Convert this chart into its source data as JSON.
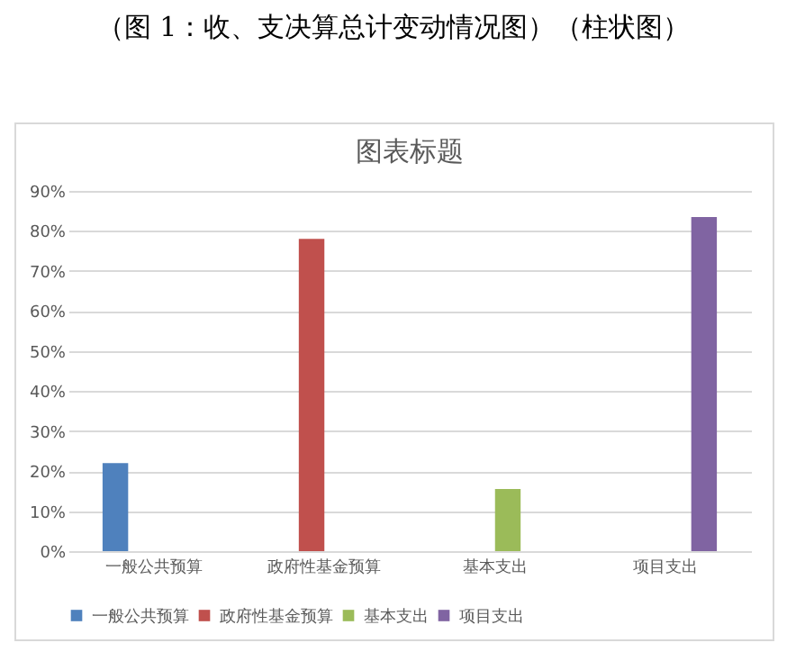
{
  "chart_data": {
    "type": "bar",
    "title": "（图 1：收、支决算总计变动情况图）（柱状图）",
    "subtitle": "图表标题",
    "categories": [
      "一般公共预算",
      "政府性基金预算",
      "基本支出",
      "项目支出"
    ],
    "series": [
      {
        "name": "一般公共预算",
        "color": "#4f81bd",
        "values": [
          22,
          null,
          null,
          null
        ]
      },
      {
        "name": "政府性基金预算",
        "color": "#c0504d",
        "values": [
          null,
          78,
          null,
          null
        ]
      },
      {
        "name": "基本支出",
        "color": "#9bbb59",
        "values": [
          null,
          null,
          15.5,
          null
        ]
      },
      {
        "name": "项目支出",
        "color": "#8064a2",
        "values": [
          null,
          null,
          null,
          83.5
        ]
      }
    ],
    "ylim": [
      0,
      90
    ],
    "yticks": [
      {
        "value": 0,
        "label": "0%"
      },
      {
        "value": 10,
        "label": "10%"
      },
      {
        "value": 20,
        "label": "20%"
      },
      {
        "value": 30,
        "label": "30%"
      },
      {
        "value": 40,
        "label": "40%"
      },
      {
        "value": 50,
        "label": "50%"
      },
      {
        "value": 60,
        "label": "60%"
      },
      {
        "value": 70,
        "label": "70%"
      },
      {
        "value": 80,
        "label": "80%"
      },
      {
        "value": 90,
        "label": "90%"
      }
    ],
    "grid": "y",
    "legend": "bottom"
  }
}
